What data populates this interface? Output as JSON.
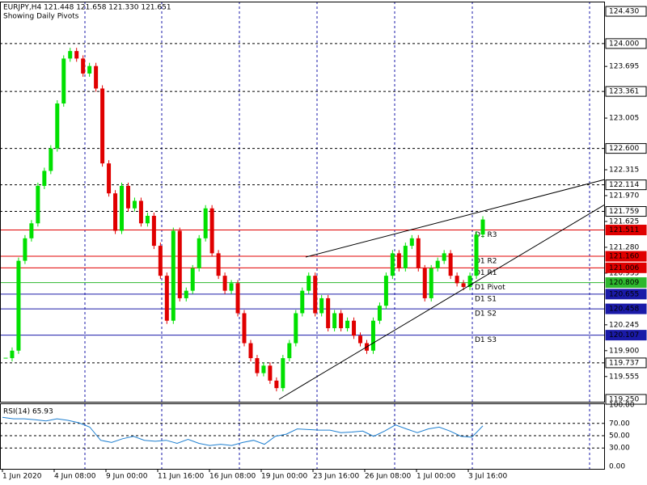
{
  "chart_data": {
    "type": "candlestick",
    "title": "EURJPY,H4  121.448 121.658 121.330 121.651",
    "subtitle": "Showing Daily Pivots",
    "up_color": "#00e000",
    "down_color": "#e00000",
    "series": [
      {
        "name": "Close",
        "values": [
          119.8,
          119.9,
          121.1,
          121.4,
          121.6,
          122.1,
          122.3,
          122.6,
          123.2,
          123.8,
          123.9,
          123.8,
          123.6,
          123.7,
          123.4,
          122.4,
          122.0,
          121.5,
          122.1,
          121.8,
          121.9,
          121.6,
          121.7,
          121.3,
          120.9,
          120.3,
          121.5,
          120.6,
          120.7,
          121.0,
          121.4,
          121.8,
          121.2,
          120.9,
          120.7,
          120.8,
          120.4,
          120.0,
          119.8,
          119.6,
          119.7,
          119.5,
          119.4,
          119.8,
          120.0,
          120.4,
          120.7,
          120.9,
          120.4,
          120.6,
          120.2,
          120.4,
          120.2,
          120.3,
          120.1,
          120.0,
          119.9,
          120.3,
          120.5,
          120.9,
          121.2,
          121.0,
          121.3,
          121.4,
          121.0,
          120.6,
          121.0,
          121.1,
          121.2,
          120.9,
          120.8,
          120.75,
          120.9,
          121.45,
          121.651
        ]
      }
    ],
    "ylim": [
      119.218,
      124.56
    ],
    "yticks": [
      123.695,
      123.005,
      122.315,
      {
        "value": 121.97,
        "label": "121.970"
      },
      121.625,
      {
        "value": 121.28,
        "label": "121.280"
      },
      120.935,
      120.245,
      {
        "value": 119.9,
        "label": "119.900"
      },
      119.555
    ],
    "levels": [
      {
        "value": 124.43,
        "label": "124.430",
        "color": "#000000",
        "style": "box"
      },
      {
        "value": 124.0,
        "label": "124.000",
        "color": "#000000",
        "style": "dashed"
      },
      {
        "value": 123.361,
        "label": "123.361",
        "color": "#000000",
        "style": "dashed"
      },
      {
        "value": 122.6,
        "label": "122.600",
        "color": "#000000",
        "style": "dashed"
      },
      {
        "value": 122.114,
        "label": "122.114",
        "color": "#000000",
        "style": "dashed"
      },
      {
        "value": 121.759,
        "label": "121.759",
        "color": "#000000",
        "style": "dashed"
      },
      {
        "value": 121.511,
        "label": "121.511",
        "color": "#e00000",
        "style": "solid",
        "name": "D1 R3"
      },
      {
        "value": 121.16,
        "label": "121.160",
        "color": "#e00000",
        "style": "solid",
        "name": "D1 R2"
      },
      {
        "value": 121.006,
        "label": "121.006",
        "color": "#e00000",
        "style": "solid",
        "name": "D1 R1"
      },
      {
        "value": 120.809,
        "label": "120.809",
        "color": "#2eb82e",
        "style": "solid",
        "name": "D1 Pivot"
      },
      {
        "value": 120.655,
        "label": "120.655",
        "color": "#1a1aa8",
        "style": "solid",
        "name": "D1 S1"
      },
      {
        "value": 120.458,
        "label": "120.458",
        "color": "#1a1aa8",
        "style": "solid",
        "name": "D1 S2"
      },
      {
        "value": 120.107,
        "label": "120.107",
        "color": "#1a1aa8",
        "style": "solid",
        "name": "D1 S3"
      },
      {
        "value": 119.737,
        "label": "119.737",
        "color": "#000000",
        "style": "dashed"
      },
      {
        "value": 119.25,
        "label": "119.250",
        "color": "#000000",
        "style": "box"
      }
    ],
    "x_labels": [
      "1 Jun 2020",
      "4 Jun 08:00",
      "9 Jun 00:00",
      "11 Jun 16:00",
      "16 Jun 08:00",
      "19 Jun 00:00",
      "23 Jun 16:00",
      "26 Jun 08:00",
      "1 Jul 00:00",
      "3 Jul 16:00"
    ],
    "rsi": {
      "title": "RSI(14) 65.93",
      "color": "#1e7fd0",
      "values": [
        80,
        77.5,
        77.5,
        76,
        74,
        77.5,
        75,
        71,
        64,
        42.5,
        39,
        45,
        49,
        42.5,
        41,
        42.5,
        37.5,
        44,
        37.5,
        34,
        36,
        34,
        39,
        42.5,
        36,
        49,
        52.5,
        61,
        60,
        59,
        59,
        55,
        56,
        57.5,
        49,
        57.5,
        67.5,
        61,
        55,
        61,
        64,
        57.5,
        49,
        47.5,
        65.93
      ],
      "ylim": [
        0,
        100
      ],
      "yticks": [
        {
          "value": 100,
          "label": "100.00"
        },
        {
          "value": 70,
          "label": "70.00"
        },
        {
          "value": 50,
          "label": "50.00"
        },
        {
          "value": 30,
          "label": "30.00"
        },
        {
          "value": 0,
          "label": "0.00"
        }
      ]
    }
  }
}
